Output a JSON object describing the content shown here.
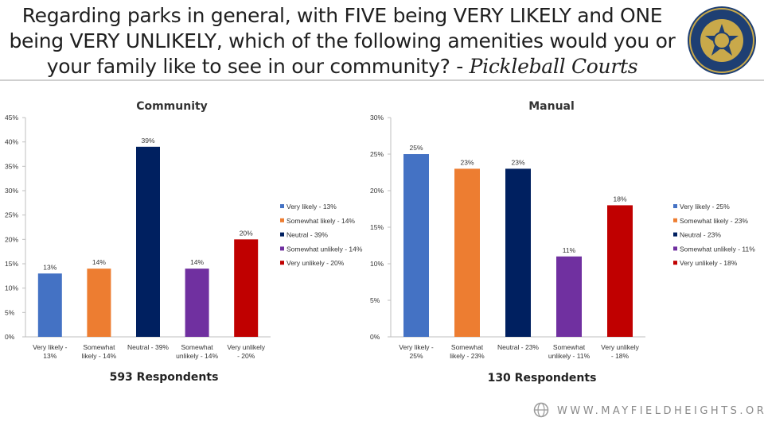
{
  "page": {
    "title_main": "Regarding parks in general, with FIVE being VERY LIKELY and ONE being VERY UNLIKELY, which of the following amenities would you or your family like to see in our community? - ",
    "title_emphasis": "Pickleball Courts",
    "seal_alt": "The City of Mayfield Heights Ohio seal",
    "footer_url": "WWW.MAYFIELDHEIGHTS.ORG"
  },
  "chart_data": [
    {
      "type": "bar",
      "title": "Community",
      "categories": [
        "Very likely - 13%",
        "Somewhat likely - 14%",
        "Neutral - 39%",
        "Somewhat unlikely - 14%",
        "Very unlikely - 20%"
      ],
      "values": [
        13,
        14,
        39,
        14,
        20
      ],
      "data_labels": [
        "13%",
        "14%",
        "39%",
        "14%",
        "20%"
      ],
      "colors": [
        "#4472C4",
        "#ED7D31",
        "#002060",
        "#7030A0",
        "#C00000"
      ],
      "ylim": [
        0,
        45
      ],
      "yticks": [
        "0%",
        "5%",
        "10%",
        "15%",
        "20%",
        "25%",
        "30%",
        "35%",
        "40%",
        "45%"
      ],
      "legend": [
        "Very likely - 13%",
        "Somewhat likely - 14%",
        "Neutral - 39%",
        "Somewhat unlikely - 14%",
        "Very unlikely - 20%"
      ],
      "legend_position": "right",
      "note": "593 Respondents",
      "grid": false
    },
    {
      "type": "bar",
      "title": "Manual",
      "categories": [
        "Very likely - 25%",
        "Somewhat likely - 23%",
        "Neutral - 23%",
        "Somewhat unlikely - 11%",
        "Very unlikely - 18%"
      ],
      "values": [
        25,
        23,
        23,
        11,
        18
      ],
      "data_labels": [
        "25%",
        "23%",
        "23%",
        "11%",
        "18%"
      ],
      "colors": [
        "#4472C4",
        "#ED7D31",
        "#002060",
        "#7030A0",
        "#C00000"
      ],
      "ylim": [
        0,
        30
      ],
      "yticks": [
        "0%",
        "5%",
        "10%",
        "15%",
        "20%",
        "25%",
        "30%"
      ],
      "legend": [
        "Very likely - 25%",
        "Somewhat likely - 23%",
        "Neutral - 23%",
        "Somewhat unlikely - 11%",
        "Very unlikely - 18%"
      ],
      "legend_position": "right",
      "note": "130 Respondents",
      "grid": false
    }
  ]
}
